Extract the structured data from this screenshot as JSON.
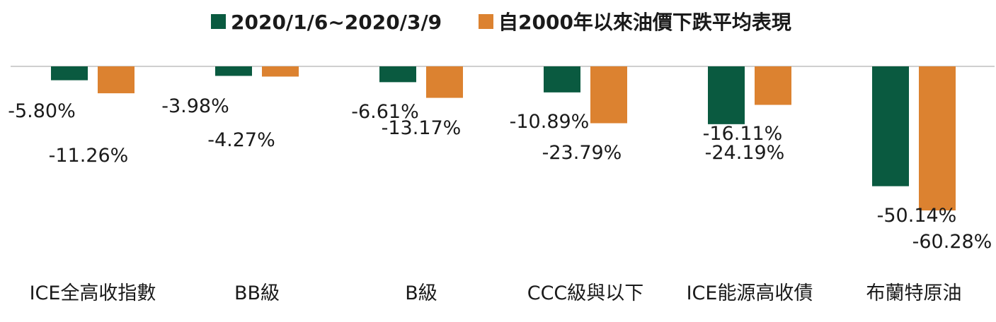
{
  "chart_data": {
    "type": "bar",
    "categories": [
      "ICE全高收指數",
      "BB級",
      "B級",
      "CCC級與以下",
      "ICE能源高收債",
      "布蘭特原油"
    ],
    "series": [
      {
        "name": "2020/1/6~2020/3/9",
        "color": "#0a5a40",
        "values": [
          -5.8,
          -3.98,
          -6.61,
          -10.89,
          -24.19,
          -50.14
        ],
        "labels": [
          "-5.80%",
          "-3.98%",
          "-6.61%",
          "-10.89%",
          "-24.19%",
          "-50.14%"
        ]
      },
      {
        "name": "自2000年以來油價下跌平均表現",
        "color": "#dc8230",
        "values": [
          -11.26,
          -4.27,
          -13.17,
          -23.79,
          -16.11,
          -60.28
        ],
        "labels": [
          "-11.26%",
          "-4.27%",
          "-13.17%",
          "-23.79%",
          "-16.11%",
          "-60.28%"
        ]
      }
    ],
    "ylim": [
      -60.28,
      0
    ],
    "grid": false,
    "legend_position": "top-center"
  }
}
